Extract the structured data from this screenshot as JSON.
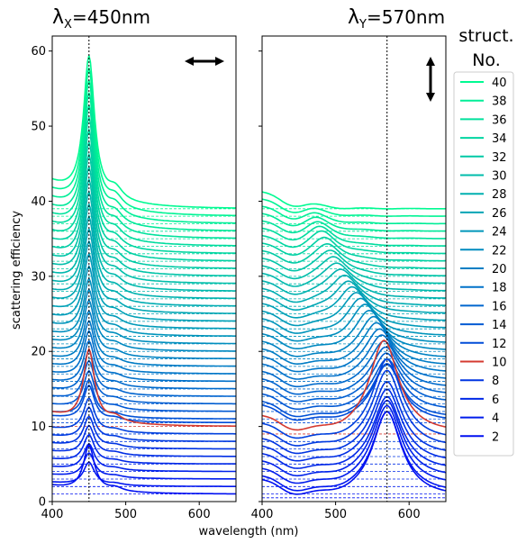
{
  "chart_data": {
    "type": "line",
    "ylabel": "scattering efficiency",
    "xlabel": "wavelength (nm)",
    "y_ticks": [
      "0",
      "10",
      "20",
      "30",
      "40",
      "50",
      "60"
    ],
    "ylim": [
      0,
      62
    ],
    "legend": {
      "title_line1": "struct.",
      "title_line2": "No.",
      "placement": "right, outside panels",
      "entries": [
        {
          "label": "40",
          "color": "#00fa92"
        },
        {
          "label": "38",
          "color": "#00ee97"
        },
        {
          "label": "36",
          "color": "#00e19c"
        },
        {
          "label": "34",
          "color": "#00d5a1"
        },
        {
          "label": "32",
          "color": "#00c9a6"
        },
        {
          "label": "30",
          "color": "#00bcab"
        },
        {
          "label": "28",
          "color": "#00b0b0"
        },
        {
          "label": "26",
          "color": "#00a4b5"
        },
        {
          "label": "24",
          "color": "#0097ba"
        },
        {
          "label": "22",
          "color": "#008bbf"
        },
        {
          "label": "20",
          "color": "#007fc4"
        },
        {
          "label": "18",
          "color": "#0072c9"
        },
        {
          "label": "16",
          "color": "#0066ce"
        },
        {
          "label": "14",
          "color": "#005ad3"
        },
        {
          "label": "12",
          "color": "#004dd8"
        },
        {
          "label": "10",
          "color": "#d43a30"
        },
        {
          "label": "8",
          "color": "#0035e2"
        },
        {
          "label": "6",
          "color": "#0028e7"
        },
        {
          "label": "4",
          "color": "#001cec"
        },
        {
          "label": "2",
          "color": "#0010f1"
        }
      ]
    },
    "panels": [
      {
        "title_main": "λ",
        "title_sub": "X",
        "title_rest": "=450nm",
        "polarization": "horizontal",
        "xlim": [
          400,
          650
        ],
        "x_ticks": [
          "400",
          "500",
          "600"
        ],
        "marker_wavelength": 450,
        "show_ylabels": true,
        "peaks": [
          {
            "center": 450,
            "width": 9,
            "scale": 0.5
          },
          {
            "center": 486,
            "width": 12,
            "scale": 0.2
          }
        ],
        "start_excess": 1.8,
        "curves": [
          {
            "structure": 40,
            "offset": 39.0,
            "peak_height": 18.8
          },
          {
            "structure": 39,
            "offset": 38.0,
            "peak_height": 18.2
          },
          {
            "structure": 38,
            "offset": 37.0,
            "peak_height": 17.6
          },
          {
            "structure": 37,
            "offset": 36.0,
            "peak_height": 17.0
          },
          {
            "structure": 36,
            "offset": 35.0,
            "peak_height": 16.4
          },
          {
            "structure": 35,
            "offset": 34.0,
            "peak_height": 15.8
          },
          {
            "structure": 34,
            "offset": 33.0,
            "peak_height": 15.2
          },
          {
            "structure": 33,
            "offset": 32.0,
            "peak_height": 14.6
          },
          {
            "structure": 32,
            "offset": 31.0,
            "peak_height": 14.0
          },
          {
            "structure": 31,
            "offset": 30.0,
            "peak_height": 13.4
          },
          {
            "structure": 30,
            "offset": 29.0,
            "peak_height": 12.8
          },
          {
            "structure": 29,
            "offset": 28.0,
            "peak_height": 12.2
          },
          {
            "structure": 28,
            "offset": 27.0,
            "peak_height": 11.6
          },
          {
            "structure": 27,
            "offset": 26.0,
            "peak_height": 11.0
          },
          {
            "structure": 26,
            "offset": 25.0,
            "peak_height": 10.4
          },
          {
            "structure": 25,
            "offset": 24.0,
            "peak_height": 9.8
          },
          {
            "structure": 24,
            "offset": 23.0,
            "peak_height": 9.2
          },
          {
            "structure": 23,
            "offset": 22.0,
            "peak_height": 8.6
          },
          {
            "structure": 22,
            "offset": 21.0,
            "peak_height": 8.0
          },
          {
            "structure": 21,
            "offset": 20.0,
            "peak_height": 7.6
          },
          {
            "structure": 20,
            "offset": 19.0,
            "peak_height": 7.2
          },
          {
            "structure": 19,
            "offset": 18.0,
            "peak_height": 6.8
          },
          {
            "structure": 18,
            "offset": 17.0,
            "peak_height": 6.5
          },
          {
            "structure": 17,
            "offset": 16.0,
            "peak_height": 6.2
          },
          {
            "structure": 16,
            "offset": 15.0,
            "peak_height": 5.9
          },
          {
            "structure": 15,
            "offset": 14.0,
            "peak_height": 5.6
          },
          {
            "structure": 14,
            "offset": 13.0,
            "peak_height": 5.3
          },
          {
            "structure": 13,
            "offset": 12.0,
            "peak_height": 5.0
          },
          {
            "structure": 12,
            "offset": 11.0,
            "peak_height": 4.8
          },
          {
            "structure": 11,
            "offset": 10.5,
            "peak_height": 4.6
          },
          {
            "structure": 10,
            "offset": 10.0,
            "peak_height": 9.5
          },
          {
            "structure": 9,
            "offset": 9.0,
            "peak_height": 4.4
          },
          {
            "structure": 8,
            "offset": 8.0,
            "peak_height": 4.2
          },
          {
            "structure": 7,
            "offset": 7.0,
            "peak_height": 4.0
          },
          {
            "structure": 6,
            "offset": 6.0,
            "peak_height": 3.8
          },
          {
            "structure": 5,
            "offset": 5.0,
            "peak_height": 3.6
          },
          {
            "structure": 4,
            "offset": 4.0,
            "peak_height": 3.4
          },
          {
            "structure": 3,
            "offset": 3.0,
            "peak_height": 3.2
          },
          {
            "structure": 2,
            "offset": 2.0,
            "peak_height": 3.0
          },
          {
            "structure": 1,
            "offset": 1.0,
            "peak_height": 6.0
          }
        ]
      },
      {
        "title_main": "λ",
        "title_sub": "Y",
        "title_rest": "=570nm",
        "polarization": "vertical",
        "xlim": [
          400,
          650
        ],
        "x_ticks": [
          "400",
          "500",
          "600"
        ],
        "marker_wavelength": 570,
        "show_ylabels": false,
        "peaks": [
          {
            "center": 570,
            "width": 24,
            "scale": 1.0
          }
        ],
        "start_excess": 2.2,
        "curves": [
          {
            "structure": 40,
            "offset": 39.0,
            "peak_height": 0.4,
            "peak_center": 465
          },
          {
            "structure": 39,
            "offset": 38.0,
            "peak_height": 0.8,
            "peak_center": 468
          },
          {
            "structure": 38,
            "offset": 37.0,
            "peak_height": 1.2,
            "peak_center": 470
          },
          {
            "structure": 37,
            "offset": 36.0,
            "peak_height": 1.6,
            "peak_center": 473
          },
          {
            "structure": 36,
            "offset": 35.0,
            "peak_height": 2.0,
            "peak_center": 476
          },
          {
            "structure": 35,
            "offset": 34.0,
            "peak_height": 2.4,
            "peak_center": 479
          },
          {
            "structure": 34,
            "offset": 33.0,
            "peak_height": 2.8,
            "peak_center": 482
          },
          {
            "structure": 33,
            "offset": 32.0,
            "peak_height": 3.0,
            "peak_center": 486
          },
          {
            "structure": 32,
            "offset": 31.0,
            "peak_height": 3.2,
            "peak_center": 490
          },
          {
            "structure": 31,
            "offset": 30.0,
            "peak_height": 3.4,
            "peak_center": 494
          },
          {
            "structure": 30,
            "offset": 29.0,
            "peak_height": 3.6,
            "peak_center": 498
          },
          {
            "structure": 29,
            "offset": 28.0,
            "peak_height": 3.8,
            "peak_center": 502
          },
          {
            "structure": 28,
            "offset": 27.0,
            "peak_height": 4.0,
            "peak_center": 507
          },
          {
            "structure": 27,
            "offset": 26.0,
            "peak_height": 4.2,
            "peak_center": 512
          },
          {
            "structure": 26,
            "offset": 25.0,
            "peak_height": 4.4,
            "peak_center": 517
          },
          {
            "structure": 25,
            "offset": 24.0,
            "peak_height": 4.6,
            "peak_center": 522
          },
          {
            "structure": 24,
            "offset": 23.0,
            "peak_height": 4.8,
            "peak_center": 528
          },
          {
            "structure": 23,
            "offset": 22.0,
            "peak_height": 5.0,
            "peak_center": 534
          },
          {
            "structure": 22,
            "offset": 21.0,
            "peak_height": 5.2,
            "peak_center": 540
          },
          {
            "structure": 21,
            "offset": 20.0,
            "peak_height": 5.4,
            "peak_center": 546
          },
          {
            "structure": 20,
            "offset": 19.0,
            "peak_height": 5.6,
            "peak_center": 552
          },
          {
            "structure": 19,
            "offset": 18.0,
            "peak_height": 5.8,
            "peak_center": 556
          },
          {
            "structure": 18,
            "offset": 17.0,
            "peak_height": 6.0,
            "peak_center": 560
          },
          {
            "structure": 17,
            "offset": 16.0,
            "peak_height": 6.2,
            "peak_center": 563
          },
          {
            "structure": 16,
            "offset": 15.0,
            "peak_height": 6.4,
            "peak_center": 566
          },
          {
            "structure": 15,
            "offset": 14.0,
            "peak_height": 6.6,
            "peak_center": 568
          },
          {
            "structure": 14,
            "offset": 13.0,
            "peak_height": 6.8,
            "peak_center": 569
          },
          {
            "structure": 13,
            "offset": 12.0,
            "peak_height": 7.0,
            "peak_center": 570
          },
          {
            "structure": 12,
            "offset": 11.0,
            "peak_height": 7.4,
            "peak_center": 570
          },
          {
            "structure": 11,
            "offset": 10.5,
            "peak_height": 7.8,
            "peak_center": 570
          },
          {
            "structure": 10,
            "offset": 9.0,
            "peak_height": 12.5,
            "peak_center": 566
          },
          {
            "structure": 9,
            "offset": 8.0,
            "peak_height": 11.0,
            "peak_center": 570
          },
          {
            "structure": 8,
            "offset": 7.0,
            "peak_height": 10.5,
            "peak_center": 570
          },
          {
            "structure": 7,
            "offset": 6.0,
            "peak_height": 10.0,
            "peak_center": 570
          },
          {
            "structure": 6,
            "offset": 5.0,
            "peak_height": 10.0,
            "peak_center": 570
          },
          {
            "structure": 5,
            "offset": 4.0,
            "peak_height": 10.0,
            "peak_center": 570
          },
          {
            "structure": 4,
            "offset": 3.0,
            "peak_height": 10.5,
            "peak_center": 570
          },
          {
            "structure": 3,
            "offset": 2.0,
            "peak_height": 10.8,
            "peak_center": 570
          },
          {
            "structure": 2,
            "offset": 1.0,
            "peak_height": 11.0,
            "peak_center": 570
          },
          {
            "structure": 1,
            "offset": 0.5,
            "peak_height": 11.5,
            "peak_center": 570
          }
        ]
      }
    ]
  }
}
